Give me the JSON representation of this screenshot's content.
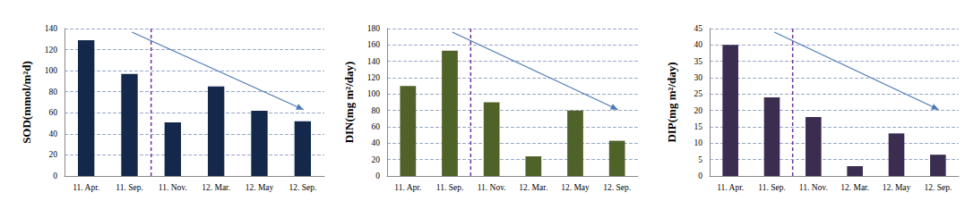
{
  "chart_data": [
    {
      "type": "bar",
      "y_label": "SOD(mmol/m²d)",
      "categories": [
        "11. Apr.",
        "11. Sep.",
        "11. Nov.",
        "12. Mar.",
        "12. May",
        "12. Sep."
      ],
      "values": [
        129,
        97,
        51,
        85,
        62,
        52
      ],
      "color": "#14284b",
      "ylim": [
        0,
        140
      ],
      "yticks": [
        0,
        20,
        40,
        60,
        80,
        100,
        120,
        140
      ],
      "grid": true
    },
    {
      "type": "bar",
      "y_label": "DIN(mg m²/day)",
      "categories": [
        "11. Apr.",
        "11. Sep.",
        "11. Nov.",
        "12. Mar.",
        "12. May",
        "12. Sep."
      ],
      "values": [
        110,
        153,
        90,
        24,
        80,
        43
      ],
      "color": "#4f6228",
      "ylim": [
        0,
        180
      ],
      "yticks": [
        0,
        20,
        40,
        60,
        80,
        100,
        120,
        140,
        160,
        180
      ],
      "grid": true
    },
    {
      "type": "bar",
      "y_label": "DIP(mg m²/day)",
      "categories": [
        "11. Apr.",
        "11. Sep.",
        "11. Nov.",
        "12. Mar.",
        "12. May",
        "12. Sep."
      ],
      "values": [
        40,
        24,
        18,
        3,
        13,
        6.5
      ],
      "color": "#3b2d4f",
      "ylim": [
        0,
        45
      ],
      "yticks": [
        0,
        5,
        10,
        15,
        20,
        25,
        30,
        35,
        40,
        45
      ],
      "grid": true
    }
  ]
}
